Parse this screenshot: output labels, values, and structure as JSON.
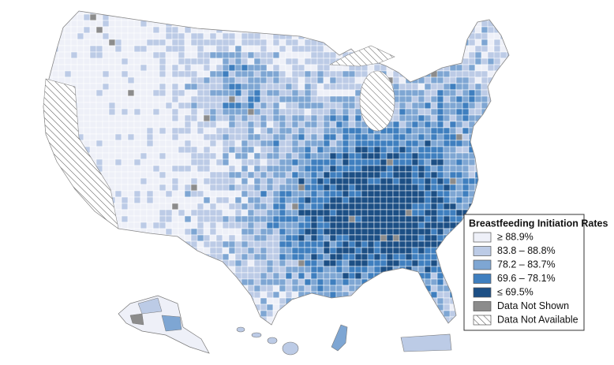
{
  "legend": {
    "title": "Breastfeeding Initiation Rates",
    "items": [
      {
        "label": "≥ 88.9%",
        "color": "#eef0f8"
      },
      {
        "label": "83.8 – 88.8%",
        "color": "#bccbe6"
      },
      {
        "label": "78.2 – 83.7%",
        "color": "#7ea6d3"
      },
      {
        "label": "69.6 – 78.1%",
        "color": "#3f7fbf"
      },
      {
        "label": "≤ 69.5%",
        "color": "#1c4f85"
      },
      {
        "label": "Data Not Shown",
        "color": "#8c8c8c"
      },
      {
        "label": "Data Not Available",
        "color": "#ffffff",
        "hatch": true
      }
    ]
  }
}
